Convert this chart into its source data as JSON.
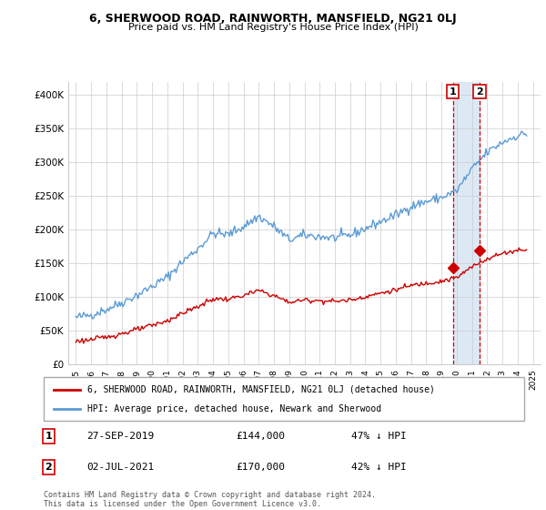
{
  "title": "6, SHERWOOD ROAD, RAINWORTH, MANSFIELD, NG21 0LJ",
  "subtitle": "Price paid vs. HM Land Registry's House Price Index (HPI)",
  "legend_line1": "6, SHERWOOD ROAD, RAINWORTH, MANSFIELD, NG21 0LJ (detached house)",
  "legend_line2": "HPI: Average price, detached house, Newark and Sherwood",
  "footer": "Contains HM Land Registry data © Crown copyright and database right 2024.\nThis data is licensed under the Open Government Licence v3.0.",
  "annotation1_label": "1",
  "annotation1_date": "27-SEP-2019",
  "annotation1_price": "£144,000",
  "annotation1_hpi": "47% ↓ HPI",
  "annotation2_label": "2",
  "annotation2_date": "02-JUL-2021",
  "annotation2_price": "£170,000",
  "annotation2_hpi": "42% ↓ HPI",
  "sale1_x": 2019.74,
  "sale1_y": 144000,
  "sale2_x": 2021.5,
  "sale2_y": 170000,
  "hpi_color": "#5b9bd5",
  "price_color": "#cc0000",
  "vline_color": "#cc0000",
  "shade_color": "#dce9f5",
  "grid_color": "#cccccc",
  "background_color": "#ffffff",
  "ylim": [
    0,
    420000
  ],
  "xlim_start": 1994.5,
  "xlim_end": 2025.5,
  "yticks": [
    0,
    50000,
    100000,
    150000,
    200000,
    250000,
    300000,
    350000,
    400000
  ],
  "ytick_labels": [
    "£0",
    "£50K",
    "£100K",
    "£150K",
    "£200K",
    "£250K",
    "£300K",
    "£350K",
    "£400K"
  ],
  "xticks": [
    1995,
    1996,
    1997,
    1998,
    1999,
    2000,
    2001,
    2002,
    2003,
    2004,
    2005,
    2006,
    2007,
    2008,
    2009,
    2010,
    2011,
    2012,
    2013,
    2014,
    2015,
    2016,
    2017,
    2018,
    2019,
    2020,
    2021,
    2022,
    2023,
    2024,
    2025
  ]
}
